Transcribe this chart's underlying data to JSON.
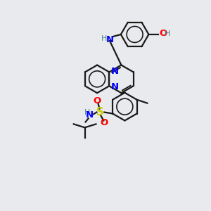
{
  "background_color": "#e8eaed",
  "atom_colors": {
    "N": "#0000ff",
    "O": "#ff0000",
    "S": "#cccc00",
    "C": "#1a1a1a",
    "H": "#4a8a8a"
  },
  "bond_color": "#1a1a1a",
  "lw": 1.6,
  "r": 20,
  "figsize": [
    3.0,
    3.0
  ],
  "dpi": 100
}
